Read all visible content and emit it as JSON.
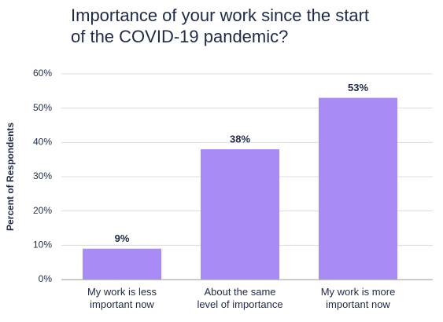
{
  "chart_data": {
    "type": "bar",
    "title": "Importance of your work since the start of the COVID-19 pandemic?",
    "ylabel": "Percent of Respondents",
    "categories": [
      "My work is less important now",
      "About the same level of importance",
      "My work is more important now"
    ],
    "values": [
      9,
      38,
      53
    ],
    "value_labels": [
      "9%",
      "38%",
      "53%"
    ],
    "color": "#a98bf6",
    "ylim": [
      0,
      60
    ],
    "yticks": [
      {
        "value": 0,
        "label": "0%"
      },
      {
        "value": 10,
        "label": "10%"
      },
      {
        "value": 20,
        "label": "20%"
      },
      {
        "value": 30,
        "label": "30%"
      },
      {
        "value": 40,
        "label": "40%"
      },
      {
        "value": 50,
        "label": "50%"
      },
      {
        "value": 60,
        "label": "60%"
      }
    ],
    "grid": true
  }
}
